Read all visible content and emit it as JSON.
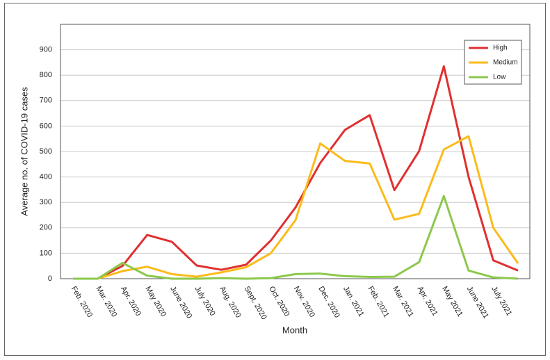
{
  "chart_data": {
    "type": "line",
    "xlabel": "Month",
    "ylabel": "Average no. of COVID-19 cases",
    "categories": [
      "Feb. 2020",
      "Mar. 2020",
      "Apr. 2020",
      "May 2020",
      "June 2020",
      "July 2020",
      "Aug. 2020",
      "Sept. 2020",
      "Oct. 2020",
      "Nov. 2020",
      "Dec. 2020",
      "Jan. 2021",
      "Feb. 2021",
      "Mar. 2021",
      "Apr. 2021",
      "May 2021",
      "June 2021",
      "July 2021",
      null
    ],
    "series": [
      {
        "name": "High",
        "color": "#e03030",
        "values": [
          0,
          0,
          50,
          172,
          145,
          52,
          35,
          55,
          150,
          280,
          455,
          585,
          643,
          348,
          502,
          835,
          400,
          72,
          32
        ]
      },
      {
        "name": "Medium",
        "color": "#fbbb1a",
        "values": [
          0,
          0,
          30,
          47,
          18,
          8,
          25,
          45,
          100,
          230,
          532,
          463,
          453,
          232,
          255,
          508,
          560,
          200,
          60
        ]
      },
      {
        "name": "Low",
        "color": "#8cc84b",
        "values": [
          0,
          0,
          62,
          12,
          0,
          0,
          2,
          0,
          2,
          18,
          20,
          10,
          7,
          8,
          65,
          325,
          32,
          5,
          0
        ]
      }
    ],
    "ylim": [
      0,
      1000
    ],
    "yticks": [
      0,
      100,
      200,
      300,
      400,
      500,
      600,
      700,
      800,
      900
    ],
    "grid": true,
    "legend": "top-right"
  }
}
